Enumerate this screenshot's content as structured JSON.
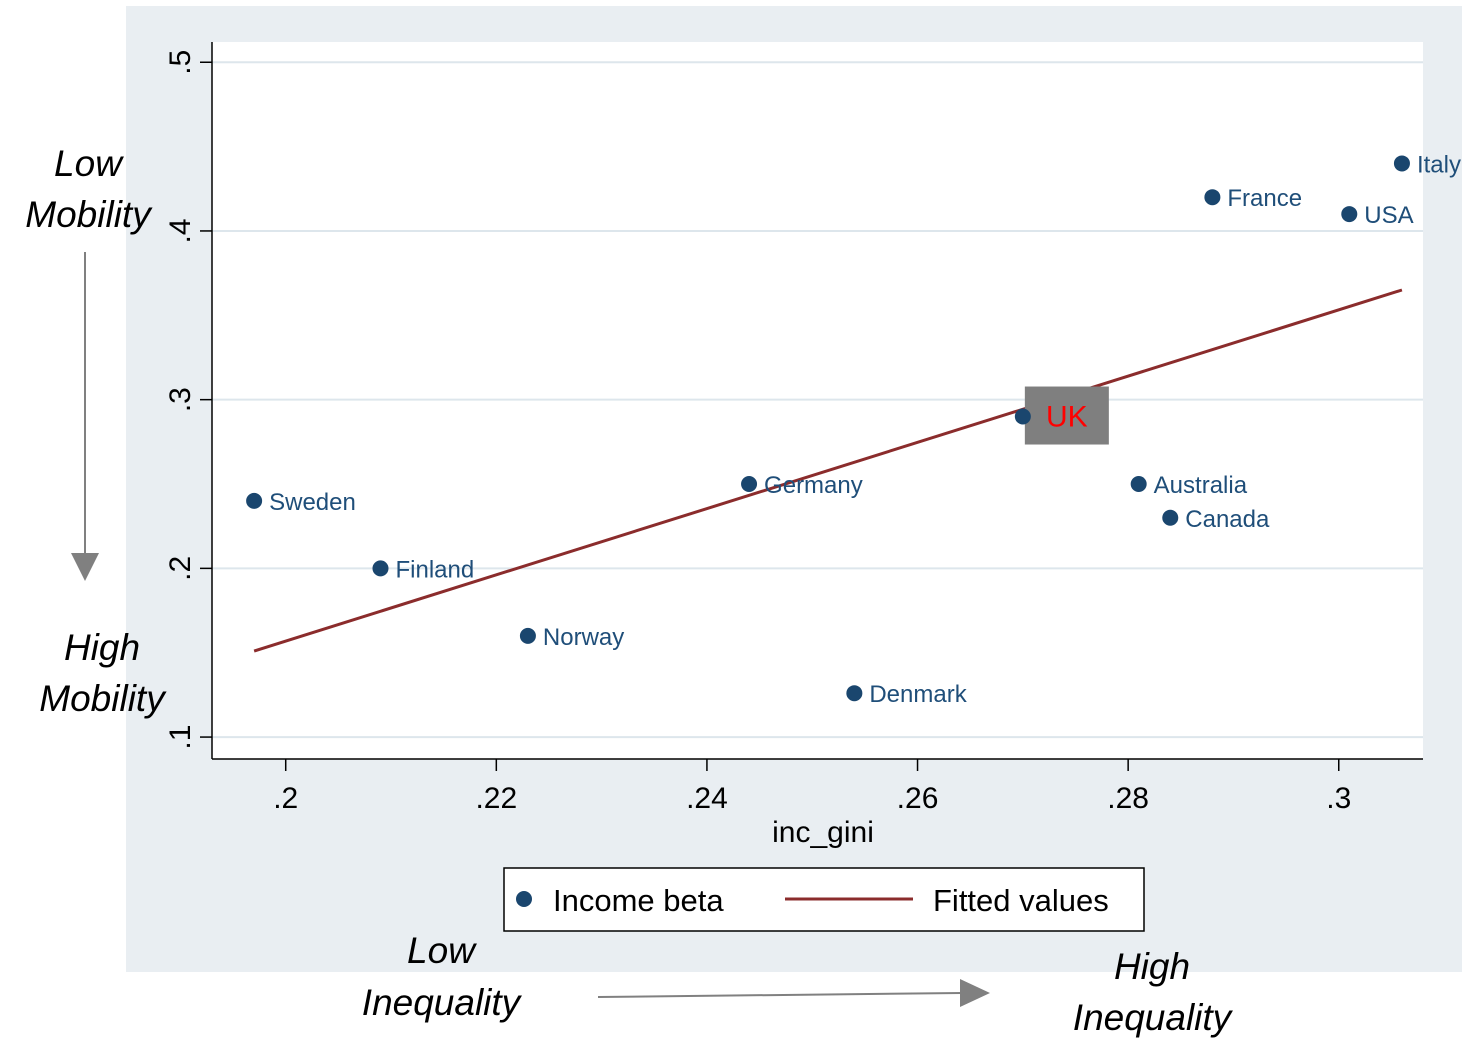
{
  "chart_data": {
    "type": "scatter",
    "xlabel": "inc_gini",
    "ylabel": "",
    "xlim": [
      0.193,
      0.308
    ],
    "ylim": [
      0.087,
      0.512
    ],
    "x_ticks": [
      0.2,
      0.22,
      0.24,
      0.26,
      0.28,
      0.3
    ],
    "x_tick_labels": [
      ".2",
      ".22",
      ".24",
      ".26",
      ".28",
      ".3"
    ],
    "y_ticks": [
      0.1,
      0.2,
      0.3,
      0.4,
      0.5
    ],
    "y_tick_labels": [
      ".1",
      ".2",
      ".3",
      ".4",
      ".5"
    ],
    "grid": "horizontal",
    "series": [
      {
        "name": "Income beta",
        "kind": "scatter",
        "color": "#1a466e",
        "points": [
          {
            "label": "Sweden",
            "x": 0.197,
            "y": 0.24
          },
          {
            "label": "Finland",
            "x": 0.209,
            "y": 0.2
          },
          {
            "label": "Norway",
            "x": 0.223,
            "y": 0.16
          },
          {
            "label": "Germany",
            "x": 0.244,
            "y": 0.25
          },
          {
            "label": "Denmark",
            "x": 0.254,
            "y": 0.126
          },
          {
            "label": "UK",
            "x": 0.27,
            "y": 0.29
          },
          {
            "label": "Australia",
            "x": 0.281,
            "y": 0.25
          },
          {
            "label": "Canada",
            "x": 0.284,
            "y": 0.23
          },
          {
            "label": "France",
            "x": 0.288,
            "y": 0.42
          },
          {
            "label": "USA",
            "x": 0.301,
            "y": 0.41
          },
          {
            "label": "Italy",
            "x": 0.306,
            "y": 0.44
          }
        ]
      },
      {
        "name": "Fitted values",
        "kind": "line",
        "color": "#8b2c2c",
        "x": [
          0.197,
          0.306
        ],
        "y": [
          0.151,
          0.365
        ]
      }
    ],
    "legend": {
      "placement": "bottom",
      "items": [
        "Income beta",
        "Fitted values"
      ]
    },
    "highlight": {
      "label": "UK",
      "box_color": "#7f7f7f",
      "text_color": "#ff0000"
    }
  },
  "annotations": {
    "low_mobility": [
      "Low",
      "Mobility"
    ],
    "high_mobility": [
      "High",
      "Mobility"
    ],
    "low_inequality": [
      "Low",
      "Inequality"
    ],
    "high_inequality": [
      "High",
      "Inequality"
    ]
  },
  "colors": {
    "panel_bg": "#e9eef2",
    "plot_bg": "#ffffff",
    "grid": "#dde6ec",
    "arrow": "#808080"
  }
}
